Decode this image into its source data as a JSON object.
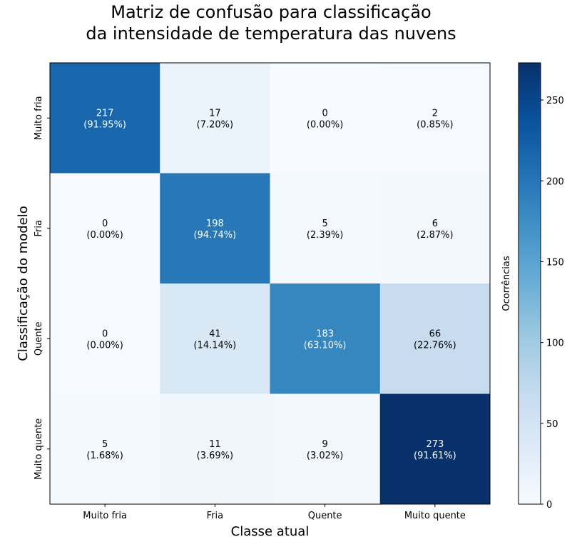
{
  "chart_data": {
    "type": "heatmap",
    "title_line1": "Matriz de confusão para classificação",
    "title_line2": "da intensidade de temperatura das nuvens",
    "xlabel": "Classe atual",
    "ylabel": "Classificação do modelo",
    "x_categories": [
      "Muito fria",
      "Fria",
      "Quente",
      "Muito quente"
    ],
    "y_categories": [
      "Muito fria",
      "Fria",
      "Quente",
      "Muito quente"
    ],
    "values": [
      [
        217,
        17,
        0,
        2
      ],
      [
        0,
        198,
        5,
        6
      ],
      [
        0,
        41,
        183,
        66
      ],
      [
        5,
        11,
        9,
        273
      ]
    ],
    "percent_labels": [
      [
        "(91.95%)",
        "(7.20%)",
        "(0.00%)",
        "(0.85%)"
      ],
      [
        "(0.00%)",
        "(94.74%)",
        "(2.39%)",
        "(2.87%)"
      ],
      [
        "(0.00%)",
        "(14.14%)",
        "(63.10%)",
        "(22.76%)"
      ],
      [
        "(1.68%)",
        "(3.69%)",
        "(3.02%)",
        "(91.61%)"
      ]
    ],
    "colorbar": {
      "label": "Ocorrências",
      "range": [
        0,
        273
      ],
      "ticks": [
        "0",
        "50",
        "100",
        "150",
        "200",
        "250"
      ],
      "colormap": "Blues"
    },
    "grid": false
  }
}
